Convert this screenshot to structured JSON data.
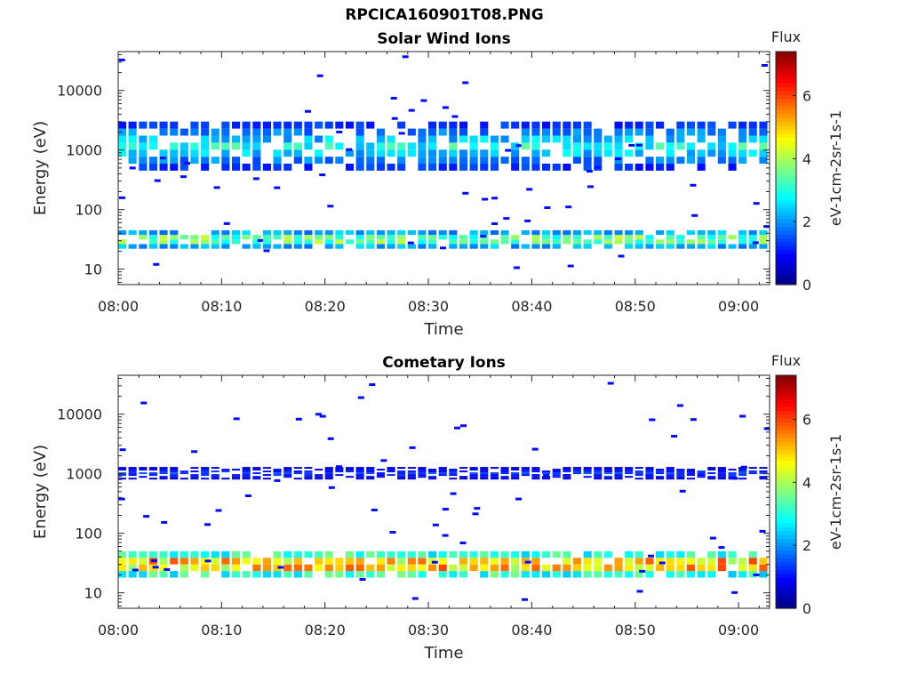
{
  "figure_title": "RPCICA160901T08.PNG",
  "chart_data": [
    {
      "type": "heatmap",
      "title": "Solar Wind Ions",
      "xlabel": "Time",
      "ylabel": "Energy (eV)",
      "x_range": [
        "08:00",
        "09:03"
      ],
      "x_ticks": [
        "08:00",
        "08:10",
        "08:20",
        "08:30",
        "08:40",
        "08:50",
        "09:00"
      ],
      "y_scale": "log",
      "y_range": [
        5.5,
        45000
      ],
      "y_ticks": [
        10,
        100,
        1000,
        10000
      ],
      "colorbar": {
        "label": "Flux",
        "units": "eV-1cm-2sr-1s-1",
        "range": [
          0,
          7.4
        ],
        "ticks": [
          0,
          2,
          4,
          6
        ]
      },
      "x_step_minutes": 1,
      "populations": [
        {
          "name": "low-energy band",
          "energy_range_eV": [
            22,
            45
          ],
          "flux_peak": 4.6
        },
        {
          "name": "main band",
          "energy_range_eV": [
            450,
            3000
          ],
          "flux_peak": 3.2
        }
      ],
      "note_scatter_flux": 1.0
    },
    {
      "type": "heatmap",
      "title": "Cometary Ions",
      "xlabel": "Time",
      "ylabel": "Energy (eV)",
      "x_range": [
        "08:00",
        "09:03"
      ],
      "x_ticks": [
        "08:00",
        "08:10",
        "08:20",
        "08:30",
        "08:40",
        "08:50",
        "09:00"
      ],
      "y_scale": "log",
      "y_range": [
        5.5,
        45000
      ],
      "y_ticks": [
        10,
        100,
        1000,
        10000
      ],
      "colorbar": {
        "label": "Flux",
        "units": "eV-1cm-2sr-1s-1",
        "range": [
          0,
          7.4
        ],
        "ticks": [
          0,
          2,
          4,
          6
        ]
      },
      "x_step_minutes": 1,
      "populations": [
        {
          "name": "low-energy band",
          "energy_range_eV": [
            18,
            50
          ],
          "flux_peak": 6.5
        },
        {
          "name": "main band",
          "energy_range_eV": [
            800,
            1300
          ],
          "flux_peak": 1.5
        }
      ],
      "note_scatter_flux": 1.0
    }
  ]
}
